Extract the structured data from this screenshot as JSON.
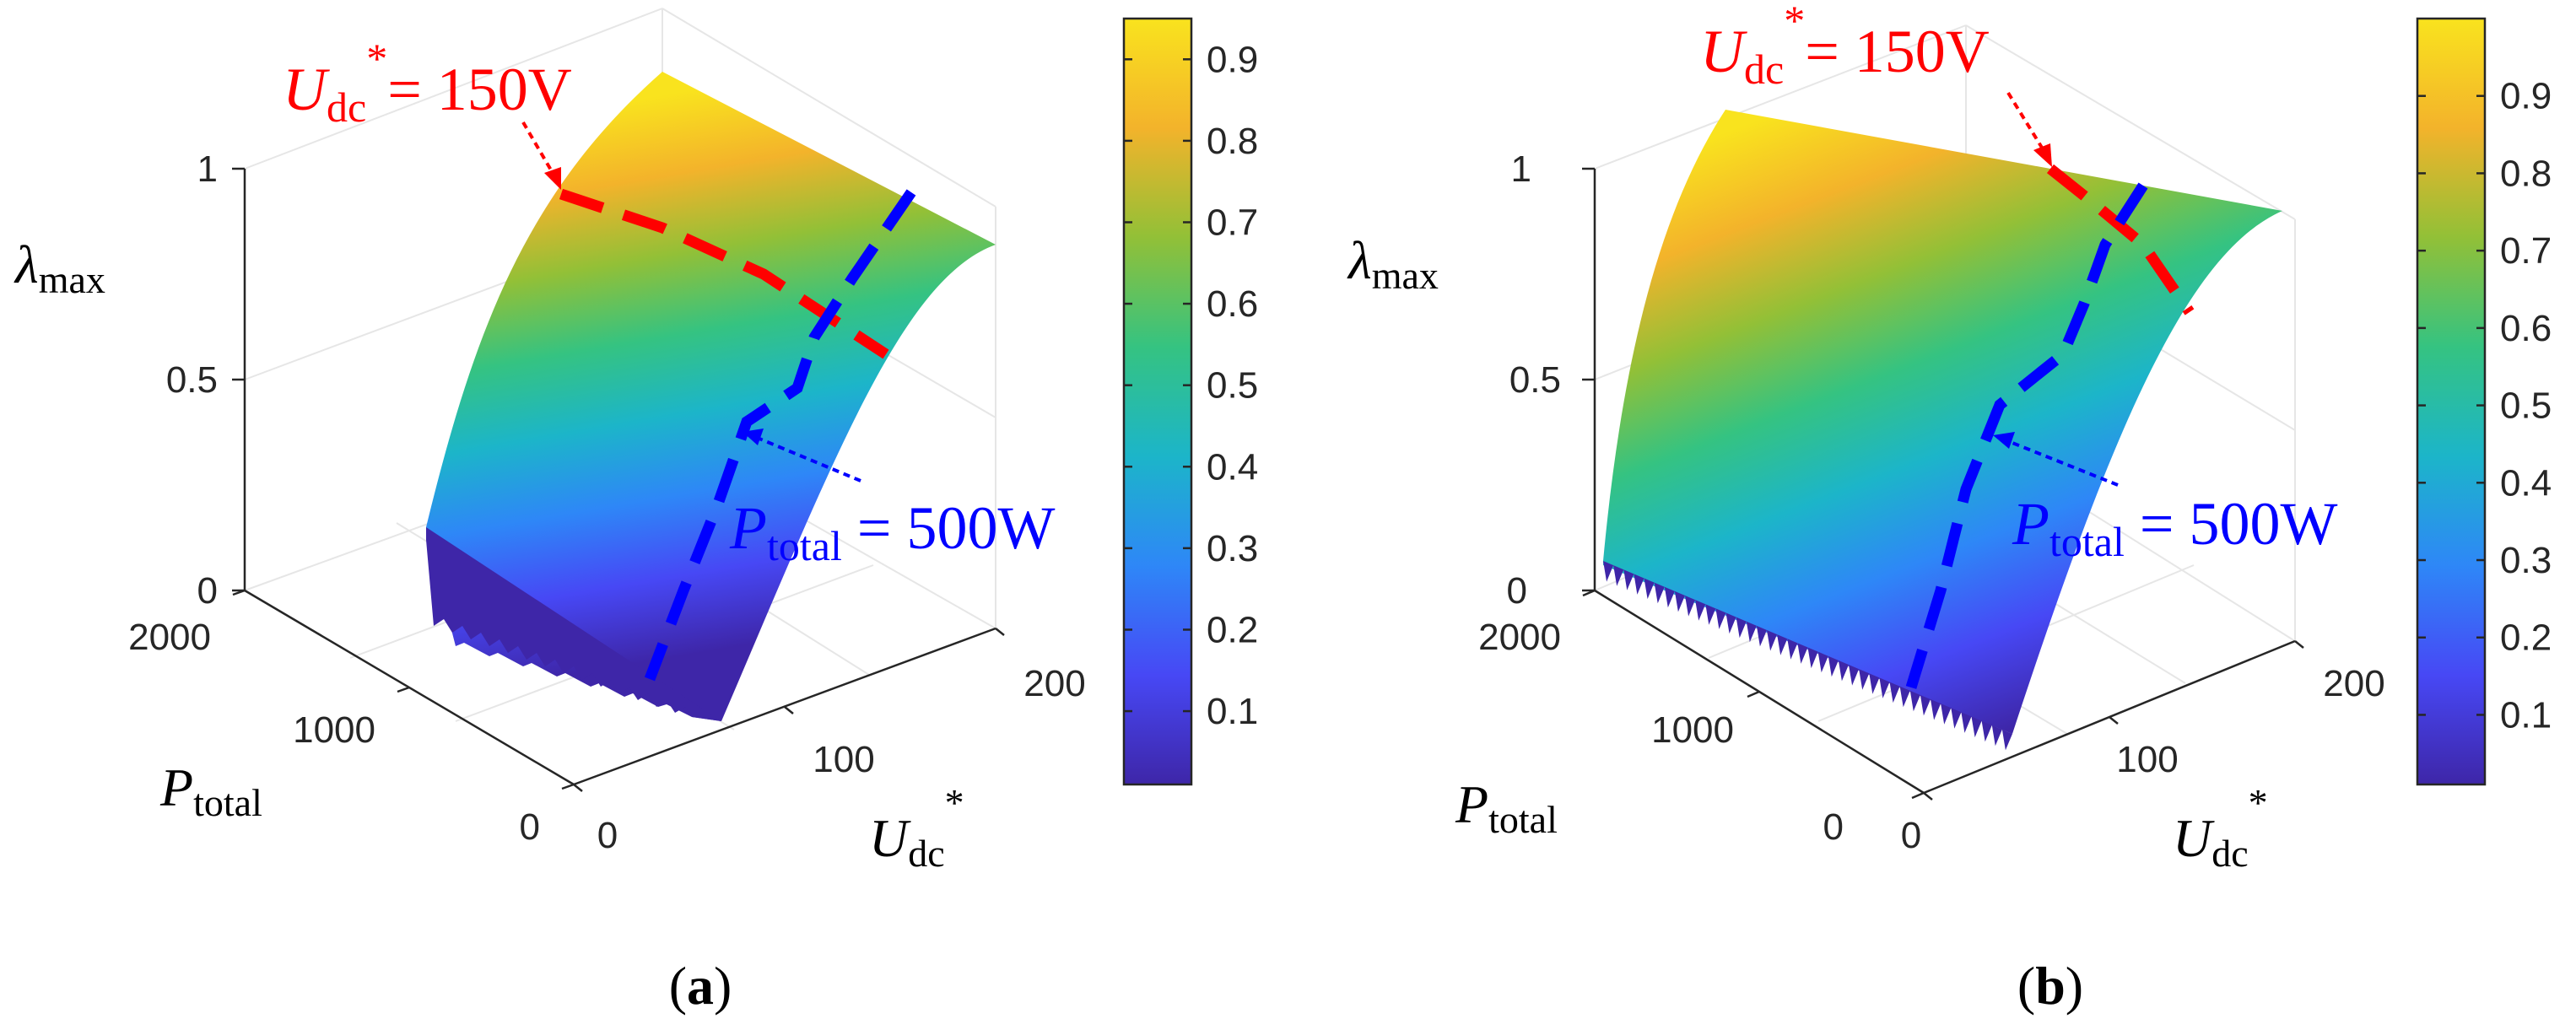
{
  "colors": {
    "red_marker": "#ff0000",
    "blue_marker": "#0000ff",
    "grid": "#e6e6e6",
    "axis": "#262626",
    "colormap_stops": [
      "#3e26a8",
      "#4748f5",
      "#2e87f7",
      "#1cb5c9",
      "#35c381",
      "#92c037",
      "#f3b32b",
      "#f9e31e"
    ]
  },
  "chart_data": [
    {
      "type": "surface3d",
      "panel_label": "(a)",
      "caption_letter": "a",
      "xlabel": "P",
      "xlabel_sub": "total",
      "ylabel": "U",
      "ylabel_sub": "dc",
      "ylabel_sup": "*",
      "zlabel": "λ",
      "zlabel_sub": "max",
      "x_range": [
        0,
        2000
      ],
      "y_range": [
        0,
        200
      ],
      "z_range": [
        0,
        1
      ],
      "x_ticks": [
        "0",
        "1000",
        "2000"
      ],
      "y_ticks": [
        "0",
        "100",
        "200"
      ],
      "z_ticks": [
        "0",
        "0.5",
        "1"
      ],
      "colorbar_range": [
        0.01,
        0.95
      ],
      "colorbar_ticks": [
        "0.1",
        "0.2",
        "0.3",
        "0.4",
        "0.5",
        "0.6",
        "0.7",
        "0.8",
        "0.9"
      ],
      "colorbar_tick_values": [
        0.1,
        0.2,
        0.3,
        0.4,
        0.5,
        0.6,
        0.7,
        0.8,
        0.9
      ],
      "annotations": [
        {
          "name": "udc-line",
          "color": "red",
          "base": "U",
          "sub": "dc",
          "sup": "*",
          "rest": "= 150V",
          "constant": "U_dc* = 150 V"
        },
        {
          "name": "ptotal-line",
          "color": "blue",
          "base": "P",
          "sub": "total",
          "rest": " = 500W",
          "constant": "P_total = 500 W"
        }
      ]
    },
    {
      "type": "surface3d",
      "panel_label": "(b)",
      "caption_letter": "b",
      "xlabel": "P",
      "xlabel_sub": "total",
      "ylabel": "U",
      "ylabel_sub": "dc",
      "ylabel_sup": "*",
      "zlabel": "λ",
      "zlabel_sub": "max",
      "x_range": [
        0,
        2000
      ],
      "y_range": [
        0,
        200
      ],
      "z_range": [
        0,
        1
      ],
      "x_ticks": [
        "0",
        "1000",
        "2000"
      ],
      "y_ticks": [
        "0",
        "100",
        "200"
      ],
      "z_ticks": [
        "0",
        "0.5",
        "1"
      ],
      "colorbar_range": [
        0.01,
        1.0
      ],
      "colorbar_ticks": [
        "0.1",
        "0.2",
        "0.3",
        "0.4",
        "0.5",
        "0.6",
        "0.7",
        "0.8",
        "0.9"
      ],
      "colorbar_tick_values": [
        0.1,
        0.2,
        0.3,
        0.4,
        0.5,
        0.6,
        0.7,
        0.8,
        0.9
      ],
      "annotations": [
        {
          "name": "udc-line",
          "color": "red",
          "base": "U",
          "sub": "dc",
          "sup": "*",
          "rest": "= 150V",
          "constant": "U_dc* = 150 V"
        },
        {
          "name": "ptotal-line",
          "color": "blue",
          "base": "P",
          "sub": "total",
          "rest": " = 500W",
          "constant": "P_total = 500 W"
        }
      ]
    }
  ]
}
